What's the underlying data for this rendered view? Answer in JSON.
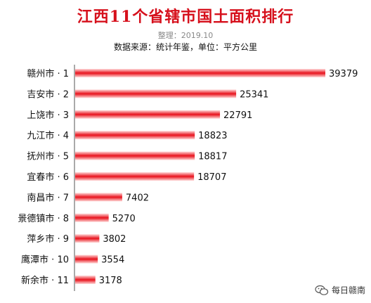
{
  "chart_data": {
    "type": "bar",
    "orientation": "horizontal",
    "title": "江西11个省辖市国土面积排行",
    "subtitle": "整理：2019.10",
    "note": "数据来源：统计年鉴，单位：平方公里",
    "categories": [
      "赣州市 · 1",
      "吉安市 · 2",
      "上饶市 · 3",
      "九江市 · 4",
      "抚州市 · 5",
      "宜春市 · 6",
      "南昌市 · 7",
      "景德镇市 · 8",
      "萍乡市 · 9",
      "鹰潭市 · 10",
      "新余市 · 11"
    ],
    "values": [
      39379,
      25341,
      22791,
      18823,
      18817,
      18707,
      7402,
      5270,
      3802,
      3554,
      3178
    ],
    "xlim": [
      0,
      39379
    ],
    "grid": false,
    "legend": "none",
    "bar_color": "#e8121c"
  },
  "watermark": {
    "text": "每日赣南",
    "icon": "wechat-icon"
  }
}
